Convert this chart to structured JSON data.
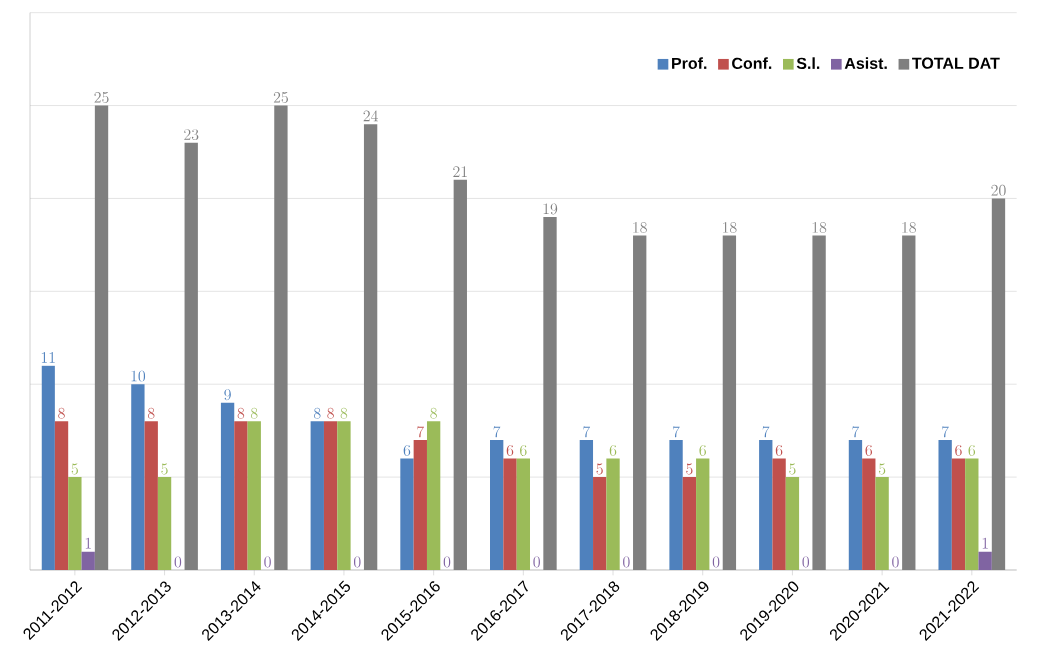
{
  "chart_data": {
    "type": "bar",
    "categories": [
      "2011-2012",
      "2012-2013",
      "2013-2014",
      "2014-2015",
      "2015-2016",
      "2016-2017",
      "2017-2018",
      "2018-2019",
      "2019-2020",
      "2020-2021",
      "2021-2022"
    ],
    "series": [
      {
        "name": "Prof.",
        "color": "#4f81bd",
        "values": [
          11,
          10,
          9,
          8,
          6,
          7,
          7,
          7,
          7,
          7,
          7
        ]
      },
      {
        "name": "Conf.",
        "color": "#c0504d",
        "values": [
          8,
          8,
          8,
          8,
          7,
          6,
          5,
          5,
          6,
          6,
          6
        ]
      },
      {
        "name": "S.l.",
        "color": "#9bbb59",
        "values": [
          5,
          5,
          8,
          8,
          8,
          6,
          6,
          6,
          5,
          5,
          6
        ]
      },
      {
        "name": "Asist.",
        "color": "#8064a2",
        "values": [
          1,
          0,
          0,
          0,
          0,
          0,
          0,
          0,
          0,
          0,
          1
        ]
      },
      {
        "name": "TOTAL DAT",
        "color": "#7f7f7f",
        "values": [
          25,
          23,
          25,
          24,
          21,
          19,
          18,
          18,
          18,
          18,
          20
        ]
      }
    ],
    "ylim": [
      0,
      30
    ],
    "yticks": [
      {
        "value": 0,
        "label": null
      },
      {
        "value": 5,
        "label": null
      },
      {
        "value": 10,
        "label": null
      },
      {
        "value": 15,
        "label": null
      },
      {
        "value": 20,
        "label": null
      },
      {
        "value": 25,
        "label": null
      },
      {
        "value": 30,
        "label": null
      }
    ],
    "tick_labels": "x",
    "grid": "y",
    "legend": "top right",
    "data_labels": true
  }
}
